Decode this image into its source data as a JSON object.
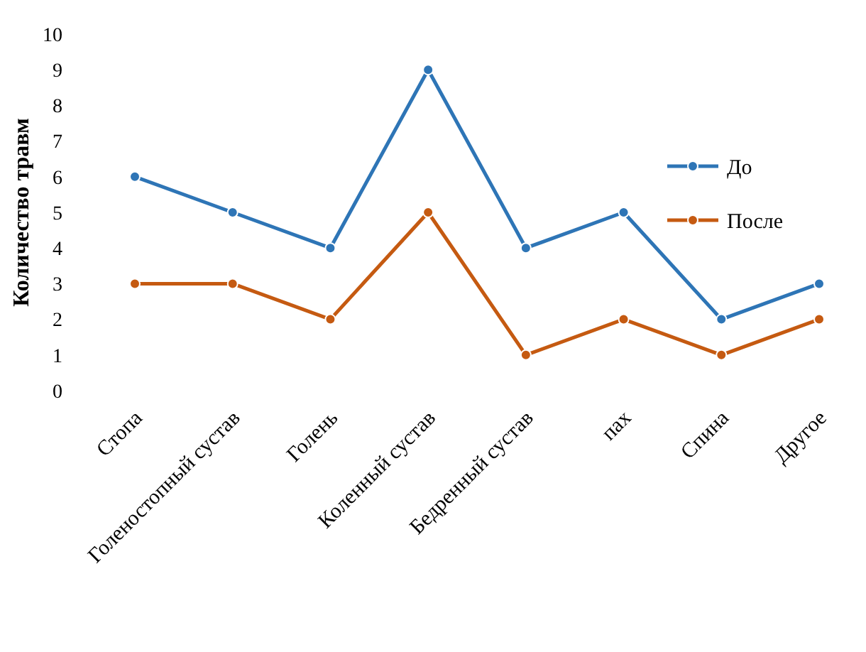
{
  "chart_data": {
    "type": "line",
    "ylabel": "Количество травм",
    "categories": [
      "Стопа",
      "Голеностопный сустав",
      "Голень",
      "Коленный сустав",
      "Бедренный сустав",
      "пах",
      "Спина",
      "Другое"
    ],
    "series": [
      {
        "name": "До",
        "color": "#2e75b6",
        "values": [
          6,
          5,
          4,
          9,
          4,
          5,
          2,
          3
        ]
      },
      {
        "name": "После",
        "color": "#c55a11",
        "values": [
          3,
          3,
          2,
          5,
          1,
          2,
          1,
          2
        ]
      }
    ],
    "ylim": [
      0,
      10
    ],
    "yticks": [
      0,
      1,
      2,
      3,
      4,
      5,
      6,
      7,
      8,
      9,
      10
    ],
    "grid": false,
    "legend": "right",
    "marker": "circle",
    "line_style": "solid"
  }
}
